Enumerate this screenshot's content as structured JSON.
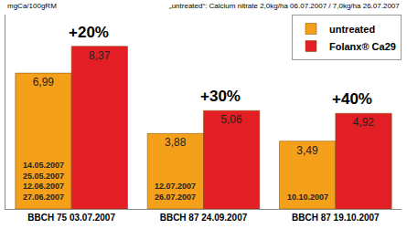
{
  "chart_data": {
    "type": "bar",
    "subtitle": "„untreated“: Calcium nitrate 2,0kg/ha 06.07.2007 / 7,0kg/ha 26.07.2007",
    "ylabel": "mgCa/100gRM",
    "categories": [
      "BBCH 75 03.07.2007",
      "BBCH 87 24.09.2007",
      "BBCH 87 19.10.2007"
    ],
    "series": [
      {
        "name": "untreated",
        "color": "#f5a01a",
        "values": [
          6.99,
          3.88,
          3.49
        ],
        "value_labels": [
          "6,99",
          "3,88",
          "3,49"
        ]
      },
      {
        "name": "Folanx® Ca29",
        "color": "#e31e24",
        "values": [
          8.37,
          5.06,
          4.92
        ],
        "value_labels": [
          "8,37",
          "5,06",
          "4,92"
        ]
      }
    ],
    "annotations": [
      "+20%",
      "+30%",
      "+40%"
    ],
    "application_dates": [
      [
        "14.05.2007",
        "25.05.2007",
        "12.06.2007",
        "27.06.2007"
      ],
      [
        "12.07.2007",
        "26.07.2007"
      ],
      [
        "10.10.2007"
      ]
    ],
    "ylim": [
      0,
      10
    ],
    "grid": false,
    "legend": "top right",
    "data_labels": true,
    "tick_labels": "x"
  }
}
